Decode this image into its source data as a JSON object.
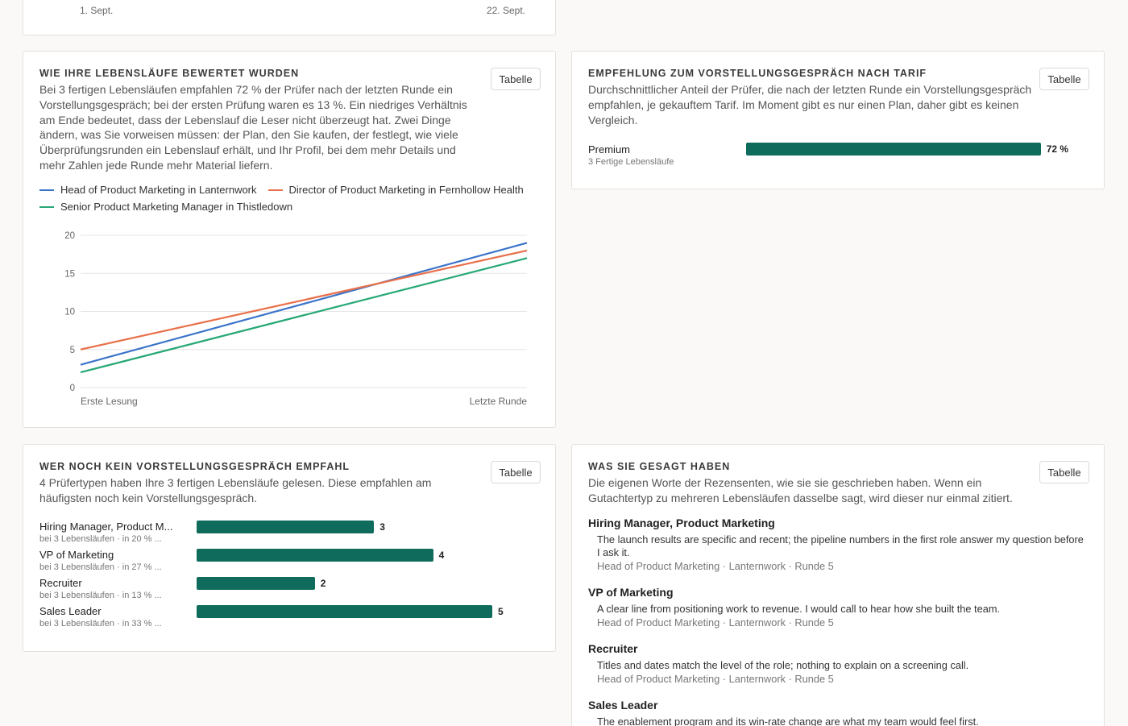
{
  "top_card": {
    "x_label_start": "1. Sept.",
    "x_label_end": "22. Sept."
  },
  "line_card": {
    "title": "WIE IHRE LEBENSLÄUFE BEWERTET WURDEN",
    "description": "Bei 3 fertigen Lebensläufen empfahlen 72 % der Prüfer nach der letzten Runde ein Vorstellungsgespräch; bei der ersten Prüfung waren es 13 %. Ein niedriges Verhältnis am Ende bedeutet, dass der Lebenslauf die Leser nicht überzeugt hat. Zwei Dinge ändern, was Sie vorweisen müssen: der Plan, den Sie kaufen, der festlegt, wie viele Überprüfungsrunden ein Lebenslauf erhält, und Ihr Profil, bei dem mehr Details und mehr Zahlen jede Runde mehr Material liefern.",
    "table_button": "Tabelle"
  },
  "tariff_card": {
    "title": "EMPFEHLUNG ZUM VORSTELLUNGSGESPRÄCH NACH TARIF",
    "description": "Durchschnittlicher Anteil der Prüfer, die nach der letzten Runde ein Vorstellungsgespräch empfahlen, je gekauftem Tarif. Im Moment gibt es nur einen Plan, daher gibt es keinen Vergleich.",
    "table_button": "Tabelle",
    "plan_name": "Premium",
    "plan_sub": "3 Fertige Lebensläufe",
    "plan_value": 0.72,
    "plan_value_label": "72 %"
  },
  "no_interview_card": {
    "title": "WER NOCH KEIN VORSTELLUNGSGESPRÄCH EMPFAHL",
    "description": "4 Prüfertypen haben Ihre 3 fertigen Lebensläufe gelesen. Diese empfahlen am häufigsten noch kein Vorstellungsgespräch.",
    "table_button": "Tabelle",
    "max_value": 5,
    "rows": [
      {
        "label": "Hiring Manager, Product M...",
        "sub": "bei 3 Lebensläufen · in 20 % ...",
        "value": 3,
        "value_label": "3"
      },
      {
        "label": "VP of Marketing",
        "sub": "bei 3 Lebensläufen · in 27 % ...",
        "value": 4,
        "value_label": "4"
      },
      {
        "label": "Recruiter",
        "sub": "bei 3 Lebensläufen · in 13 % ...",
        "value": 2,
        "value_label": "2"
      },
      {
        "label": "Sales Leader",
        "sub": "bei 3 Lebensläufen · in 33 % ...",
        "value": 5,
        "value_label": "5"
      }
    ]
  },
  "quotes_card": {
    "title": "WAS SIE GESAGT HABEN",
    "description": "Die eigenen Worte der Rezensenten, wie sie sie geschrieben haben. Wenn ein Gutachtertyp zu mehreren Lebensläufen dasselbe sagt, wird dieser nur einmal zitiert.",
    "table_button": "Tabelle",
    "quotes": [
      {
        "role": "Hiring Manager, Product Marketing",
        "text": "The launch results are specific and recent; the pipeline numbers in the first role answer my question before I ask it.",
        "meta": "Head of Product Marketing · Lanternwork · Runde 5"
      },
      {
        "role": "VP of Marketing",
        "text": "A clear line from positioning work to revenue. I would call to hear how she built the team.",
        "meta": "Head of Product Marketing · Lanternwork · Runde 5"
      },
      {
        "role": "Recruiter",
        "text": "Titles and dates match the level of the role; nothing to explain on a screening call.",
        "meta": "Head of Product Marketing · Lanternwork · Runde 5"
      },
      {
        "role": "Sales Leader",
        "text": "The enablement program and its win-rate change are what my team would feel first.",
        "meta": ""
      }
    ]
  },
  "colors": {
    "blue": "#3a74c9",
    "orange": "#e8704a",
    "green": "#27a876",
    "bar": "#0f6b5c"
  },
  "chart_data": {
    "type": "line",
    "categories": [
      "Erste Lesung",
      "Letzte Runde"
    ],
    "ylim": [
      0,
      20
    ],
    "yticks": [
      0,
      5,
      10,
      15,
      20
    ],
    "grid": true,
    "legend_position": "top",
    "series": [
      {
        "name": "Head of Product Marketing in Lanternwork",
        "color": "#3a74c9",
        "values": [
          3,
          19
        ]
      },
      {
        "name": "Director of Product Marketing in Fernhollow Health",
        "color": "#e8704a",
        "values": [
          5,
          18
        ]
      },
      {
        "name": "Senior Product Marketing Manager in Thistledown",
        "color": "#27a876",
        "values": [
          2,
          17
        ]
      }
    ]
  }
}
